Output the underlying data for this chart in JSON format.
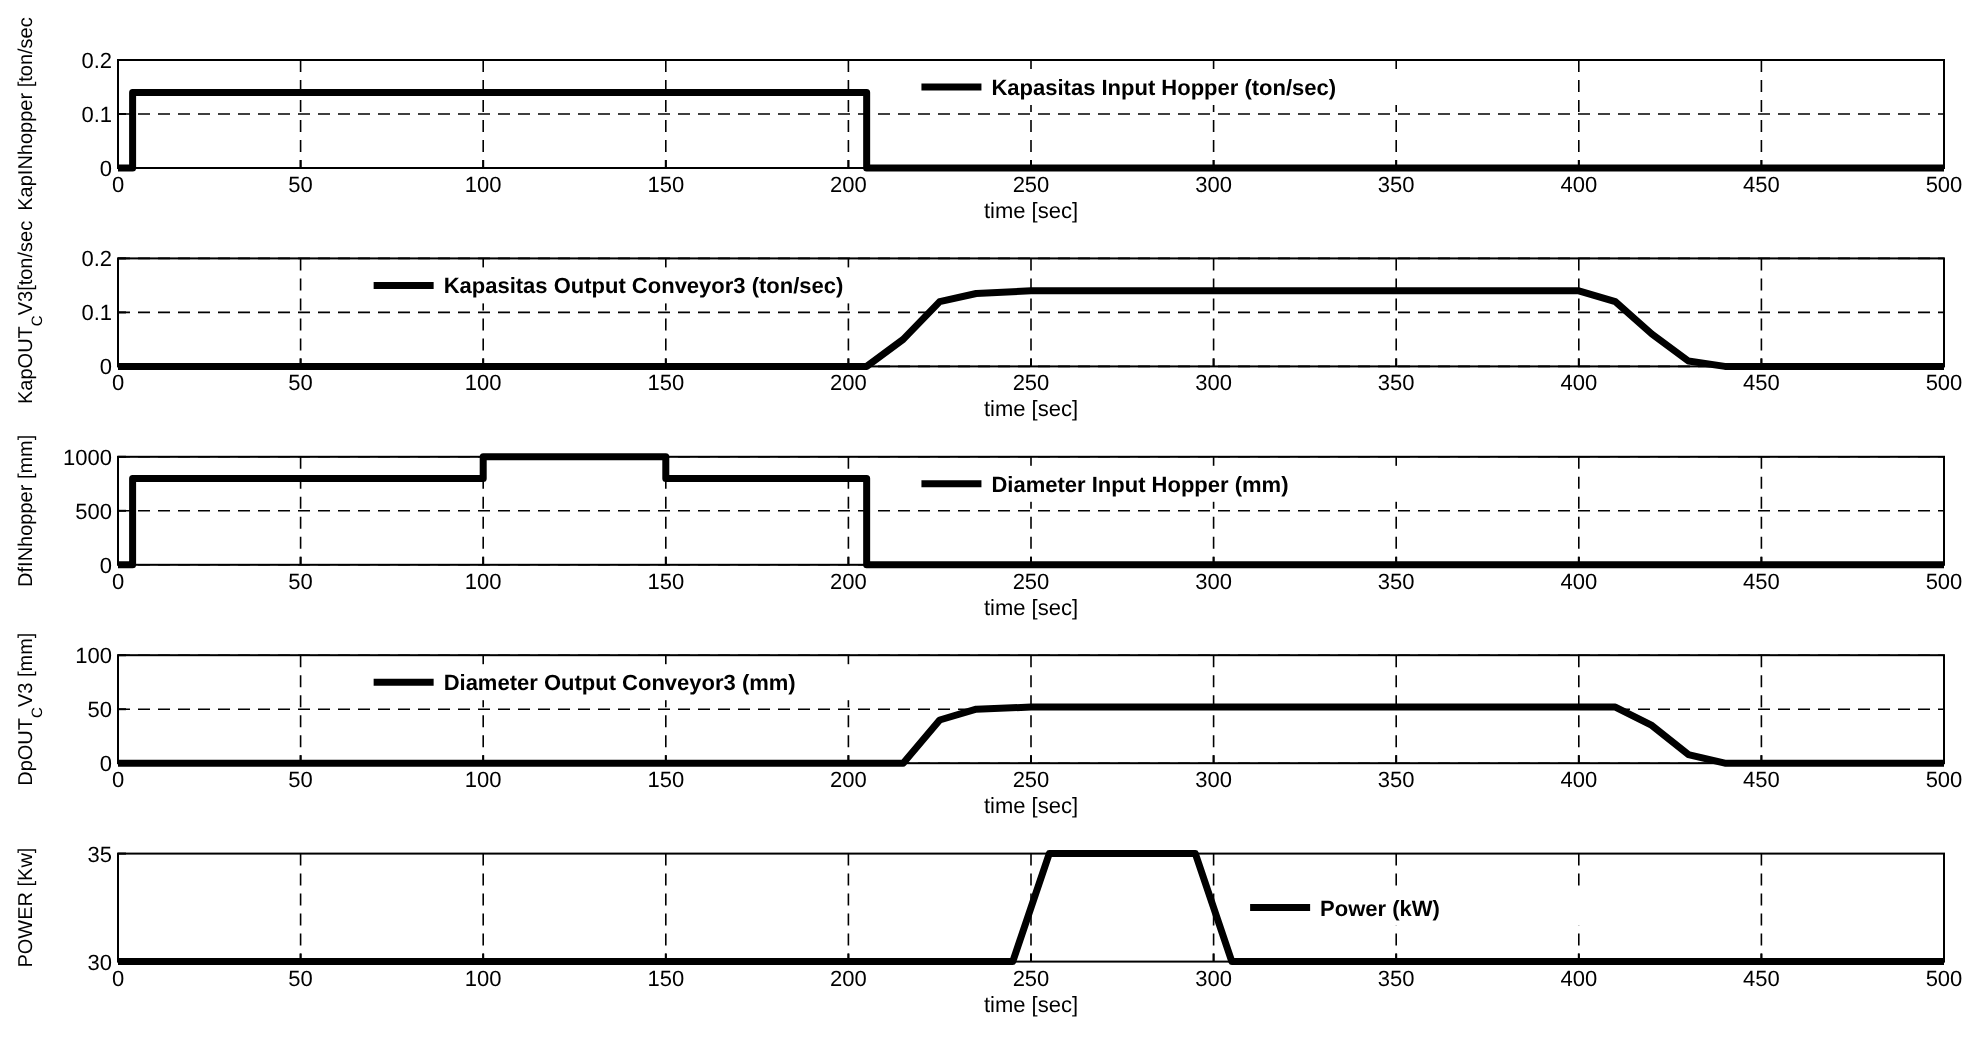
{
  "chart_data": [
    {
      "type": "line",
      "ylabel": "KapINhopper [ton/sec",
      "xlabel": "time [sec]",
      "xlim": [
        0,
        500
      ],
      "xticks": [
        0,
        50,
        100,
        150,
        200,
        250,
        300,
        350,
        400,
        450,
        500
      ],
      "ylim": [
        0,
        0.2
      ],
      "yticks": [
        0,
        0.1,
        0.2
      ],
      "grid": true,
      "legend": "top",
      "line_style": "solid",
      "series": [
        {
          "name": "Kapasitas Input Hopper (ton/sec)",
          "color": "#000000",
          "x": [
            0,
            4,
            4,
            205,
            205,
            500
          ],
          "values": [
            0,
            0,
            0.14,
            0.14,
            0,
            0
          ]
        }
      ]
    },
    {
      "type": "line",
      "ylabel": "KapOUT$_{C}$V3[ton/sec",
      "xlabel": "time [sec]",
      "xlim": [
        0,
        500
      ],
      "xticks": [
        0,
        50,
        100,
        150,
        200,
        250,
        300,
        350,
        400,
        450,
        500
      ],
      "ylim": [
        0,
        0.2
      ],
      "yticks": [
        0,
        0.1,
        0.2
      ],
      "grid": true,
      "legend": "top left",
      "line_style": "solid",
      "series": [
        {
          "name": "Kapasitas Output Conveyor3 (ton/sec)",
          "color": "#000000",
          "x": [
            0,
            205,
            215,
            225,
            235,
            250,
            400,
            410,
            420,
            430,
            440,
            500
          ],
          "values": [
            0,
            0,
            0.05,
            0.12,
            0.135,
            0.14,
            0.14,
            0.12,
            0.06,
            0.01,
            0,
            0
          ]
        }
      ]
    },
    {
      "type": "line",
      "ylabel": "DfINhopper [mm]",
      "xlabel": "time [sec]",
      "xlim": [
        0,
        500
      ],
      "xticks": [
        0,
        50,
        100,
        150,
        200,
        250,
        300,
        350,
        400,
        450,
        500
      ],
      "ylim": [
        0,
        1000
      ],
      "yticks": [
        0,
        500,
        1000
      ],
      "grid": true,
      "legend": "top",
      "line_style": "solid",
      "series": [
        {
          "name": "Diameter Input Hopper (mm)",
          "color": "#000000",
          "x": [
            0,
            4,
            4,
            100,
            100,
            150,
            150,
            205,
            205,
            500
          ],
          "values": [
            0,
            0,
            800,
            800,
            1000,
            1000,
            800,
            800,
            0,
            0
          ]
        }
      ]
    },
    {
      "type": "line",
      "ylabel": "DpOUT$_{C}$V3 [mm]",
      "xlabel": "time [sec]",
      "xlim": [
        0,
        500
      ],
      "xticks": [
        0,
        50,
        100,
        150,
        200,
        250,
        300,
        350,
        400,
        450,
        500
      ],
      "ylim": [
        0,
        100
      ],
      "yticks": [
        0,
        50,
        100
      ],
      "grid": true,
      "legend": "top left",
      "line_style": "solid",
      "series": [
        {
          "name": "Diameter Output Conveyor3 (mm)",
          "color": "#000000",
          "x": [
            0,
            215,
            225,
            235,
            250,
            410,
            420,
            430,
            440,
            500
          ],
          "values": [
            0,
            0,
            40,
            50,
            52,
            52,
            35,
            8,
            0,
            0
          ]
        }
      ]
    },
    {
      "type": "line",
      "ylabel": "POWER [Kw]",
      "xlabel": "time [sec]",
      "xlim": [
        0,
        500
      ],
      "xticks": [
        0,
        50,
        100,
        150,
        200,
        250,
        300,
        350,
        400,
        450,
        500
      ],
      "ylim": [
        30,
        35
      ],
      "yticks": [
        30,
        35
      ],
      "grid": "x",
      "legend": "right",
      "line_style": "solid",
      "series": [
        {
          "name": "Power (kW)",
          "color": "#000000",
          "x": [
            0,
            245,
            255,
            295,
            305,
            500
          ],
          "values": [
            30,
            30,
            35,
            35,
            30,
            30
          ]
        }
      ]
    }
  ]
}
